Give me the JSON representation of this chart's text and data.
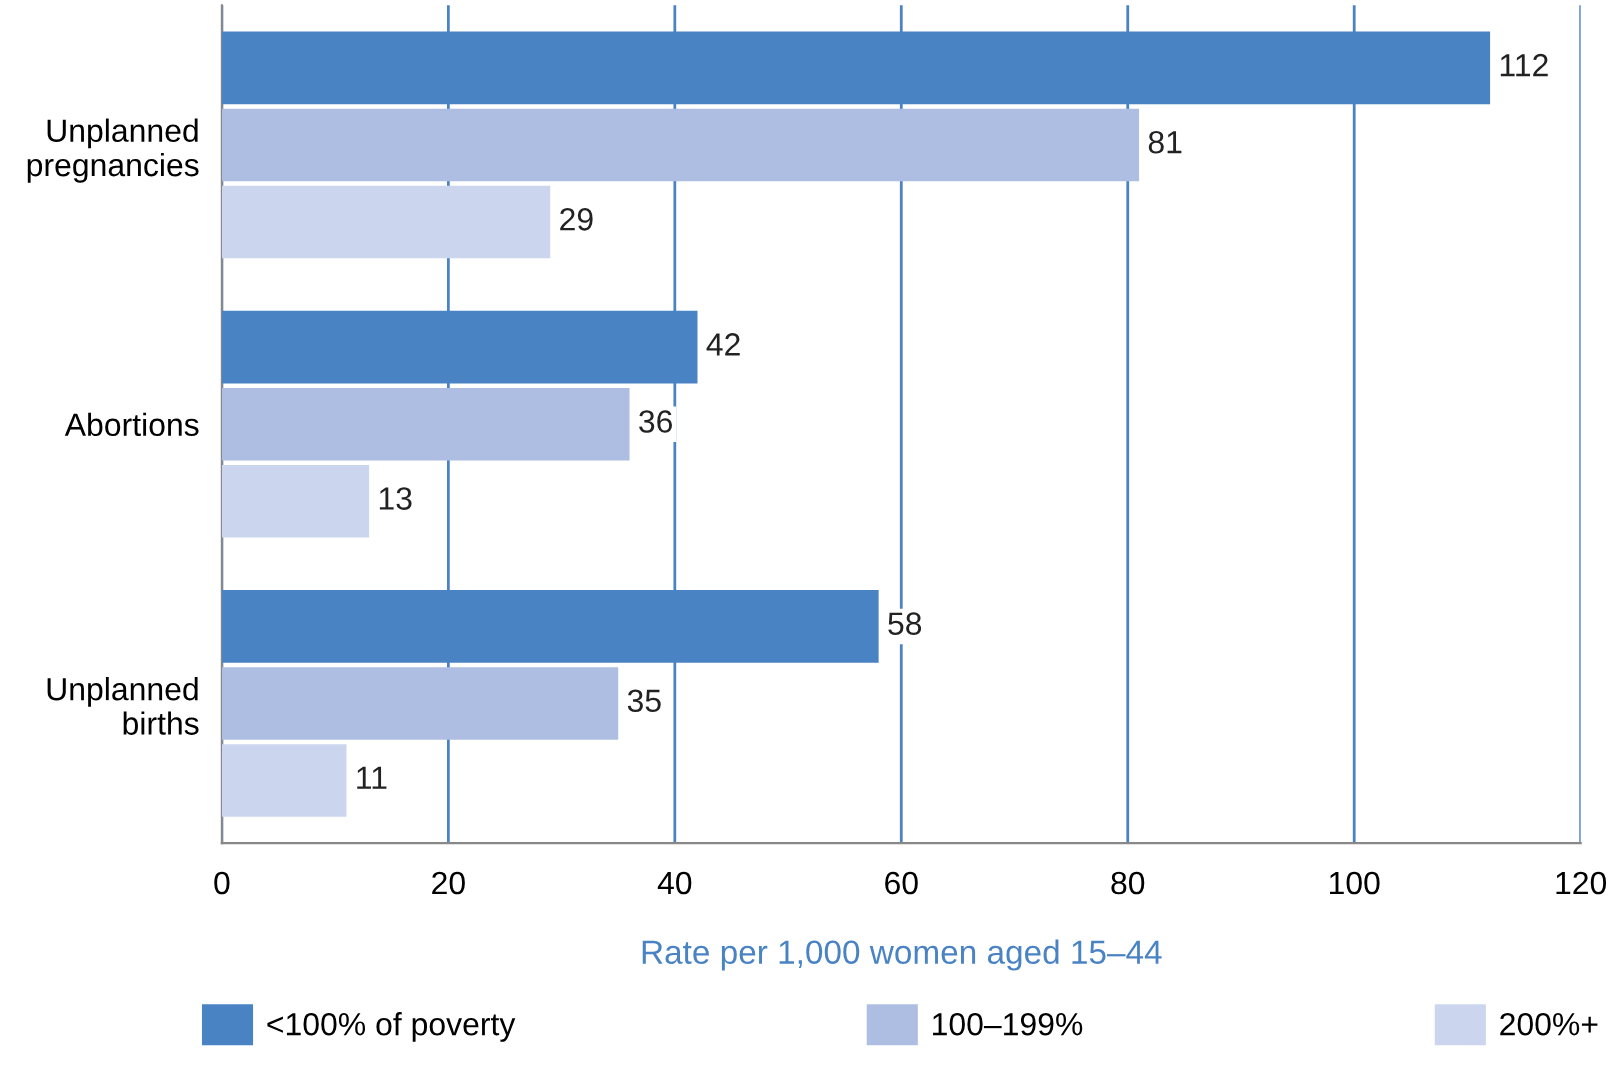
{
  "chart_data": {
    "type": "bar",
    "orientation": "horizontal",
    "categories": [
      "Unplanned\npregnancies",
      "Abortions",
      "Unplanned\nbirths"
    ],
    "series": [
      {
        "name": "<100% of poverty",
        "color": "#4a83c4",
        "values": [
          112,
          42,
          58
        ]
      },
      {
        "name": "100–199%",
        "color": "#aebee3",
        "values": [
          81,
          36,
          35
        ]
      },
      {
        "name": "200%+",
        "color": "#cbd6ee",
        "values": [
          29,
          13,
          11
        ]
      }
    ],
    "xlabel": "Rate per 1,000 women aged 15–44",
    "xlim": [
      0,
      120
    ],
    "xticks": [
      0,
      20,
      40,
      60,
      80,
      100,
      120
    ],
    "grid": "x",
    "legend": "bottom",
    "data_labels": true
  }
}
